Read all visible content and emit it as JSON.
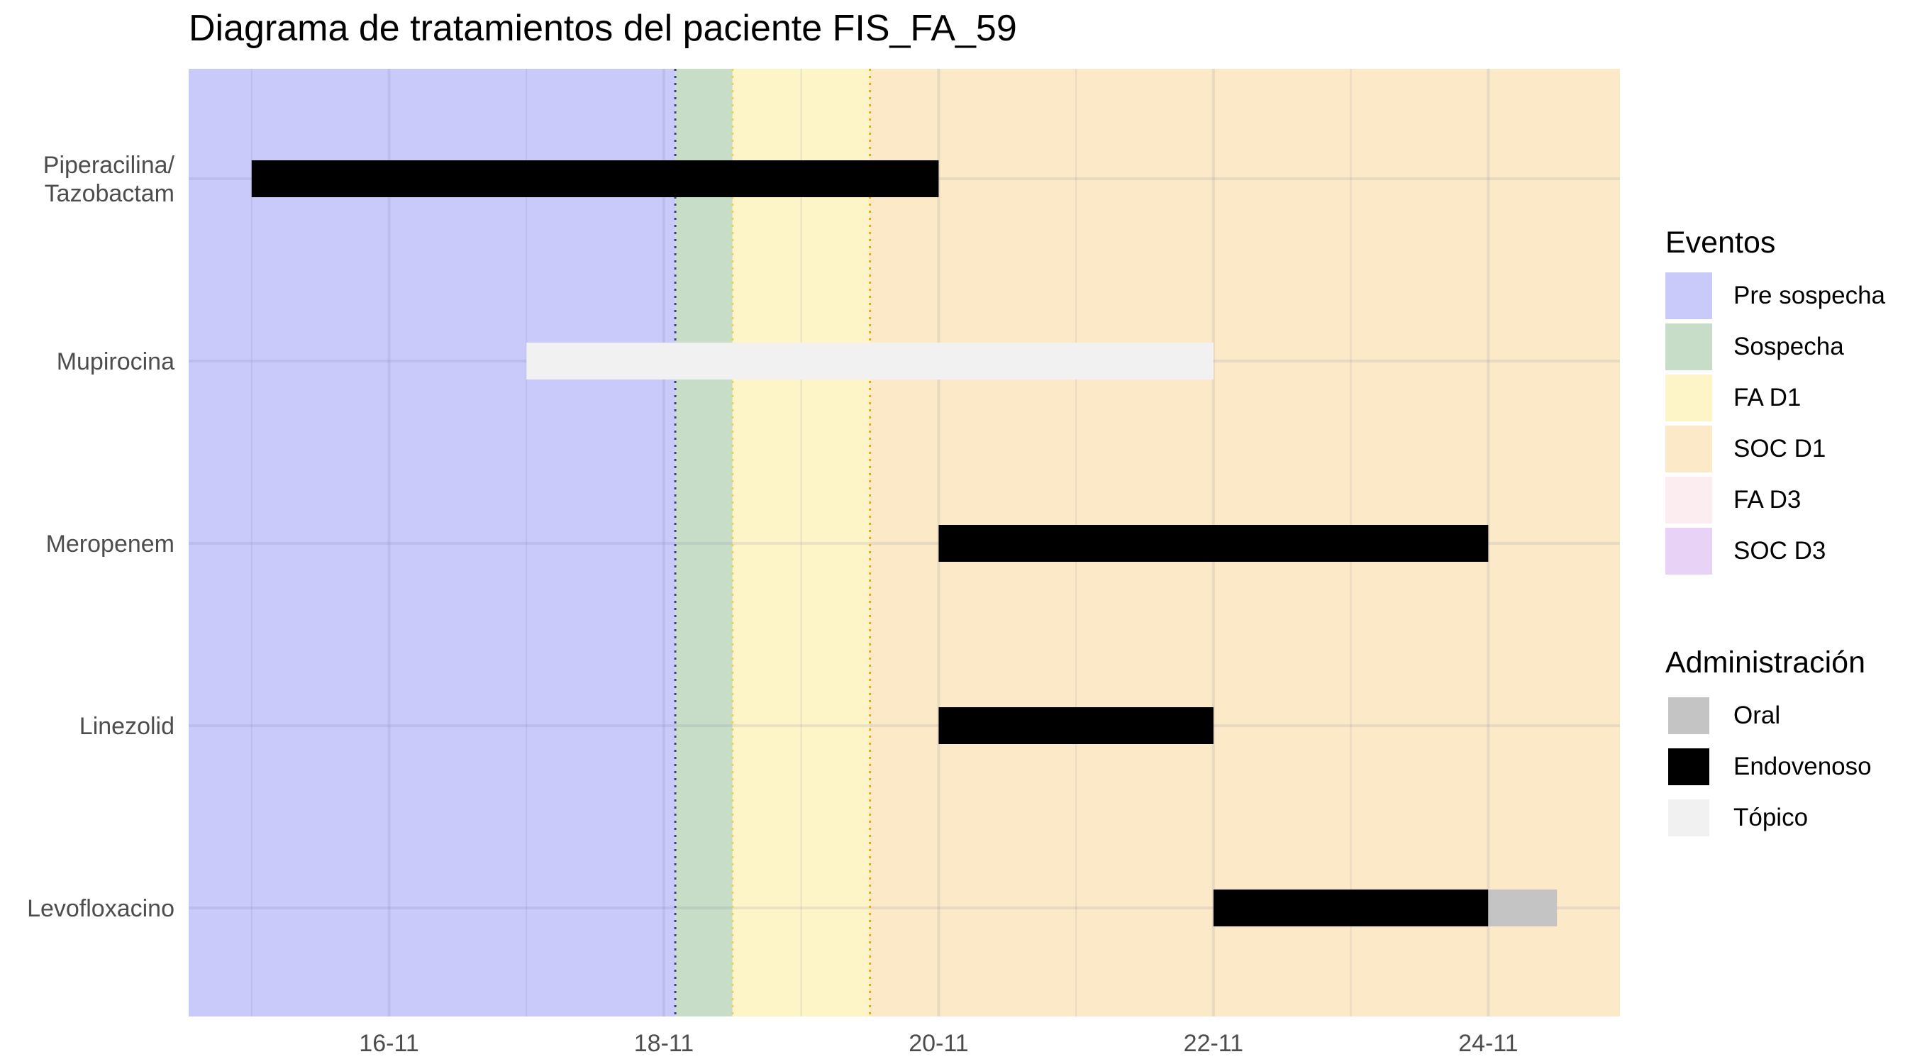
{
  "chart_data": {
    "type": "gantt",
    "title": "Diagrama de tratamientos del paciente FIS_FA_59",
    "xlabel": "",
    "ylabel": "",
    "x_range": [
      "2023-11-14 13:00",
      "2023-11-24 23:00"
    ],
    "x_ticks": [
      {
        "date": "2023-11-16",
        "label": "16-11"
      },
      {
        "date": "2023-11-18",
        "label": "18-11"
      },
      {
        "date": "2023-11-20",
        "label": "20-11"
      },
      {
        "date": "2023-11-22",
        "label": "22-11"
      },
      {
        "date": "2023-11-24",
        "label": "24-11"
      }
    ],
    "categories": [
      [
        "Piperacilina/",
        "Tazobactam"
      ],
      [
        "Mupirocina"
      ],
      [
        "Meropenem"
      ],
      [
        "Linezolid"
      ],
      [
        "Levofloxacino"
      ]
    ],
    "event_phases": [
      {
        "name": "Pre sospecha",
        "start": "2023-11-14 13:00",
        "end": "2023-11-18 02:00",
        "color": "#c9c9fa"
      },
      {
        "name": "Sospecha",
        "start": "2023-11-18 02:00",
        "end": "2023-11-18 12:00",
        "color": "#c8ddc8"
      },
      {
        "name": "FA D1",
        "start": "2023-11-18 12:00",
        "end": "2023-11-19 12:00",
        "color": "#fdf4c8"
      },
      {
        "name": "SOC D1",
        "start": "2023-11-19 12:00",
        "end": "2023-11-24 23:00",
        "color": "#fbe9c8"
      }
    ],
    "event_lines": [
      {
        "date": "2023-11-18 02:00",
        "color": "#404080"
      },
      {
        "date": "2023-11-18 12:00",
        "color": "#e6d44d"
      },
      {
        "date": "2023-11-19 12:00",
        "color": "#ffa500"
      }
    ],
    "segments": [
      {
        "drug": 0,
        "start": "2023-11-15",
        "end": "2023-11-20",
        "route": "Endovenoso"
      },
      {
        "drug": 1,
        "start": "2023-11-17",
        "end": "2023-11-22",
        "route": "Tópico"
      },
      {
        "drug": 2,
        "start": "2023-11-20",
        "end": "2023-11-24",
        "route": "Endovenoso"
      },
      {
        "drug": 3,
        "start": "2023-11-20",
        "end": "2023-11-22",
        "route": "Endovenoso"
      },
      {
        "drug": 4,
        "start": "2023-11-22",
        "end": "2023-11-24",
        "route": "Endovenoso"
      },
      {
        "drug": 4,
        "start": "2023-11-24",
        "end": "2023-11-24 12:00",
        "route": "Oral"
      }
    ],
    "route_colors": {
      "Oral": "#c4c4c4",
      "Endovenoso": "#000000",
      "Tópico": "#f1f1f1"
    },
    "grid": true,
    "legend_position": "right"
  },
  "legend_events": {
    "title": "Eventos",
    "items": [
      {
        "label": "Pre sospecha",
        "color": "#c9c9fa"
      },
      {
        "label": "Sospecha",
        "color": "#c8ddc8"
      },
      {
        "label": "FA D1",
        "color": "#fdf4c8"
      },
      {
        "label": "SOC D1",
        "color": "#fbe9c8"
      },
      {
        "label": "FA D3",
        "color": "#fcedf0"
      },
      {
        "label": "SOC D3",
        "color": "#e8d3f6"
      }
    ]
  },
  "legend_routes": {
    "title": "Administración",
    "items": [
      {
        "label": "Oral",
        "color": "#c4c4c4"
      },
      {
        "label": "Endovenoso",
        "color": "#000000"
      },
      {
        "label": "Tópico",
        "color": "#f1f1f1"
      }
    ]
  }
}
